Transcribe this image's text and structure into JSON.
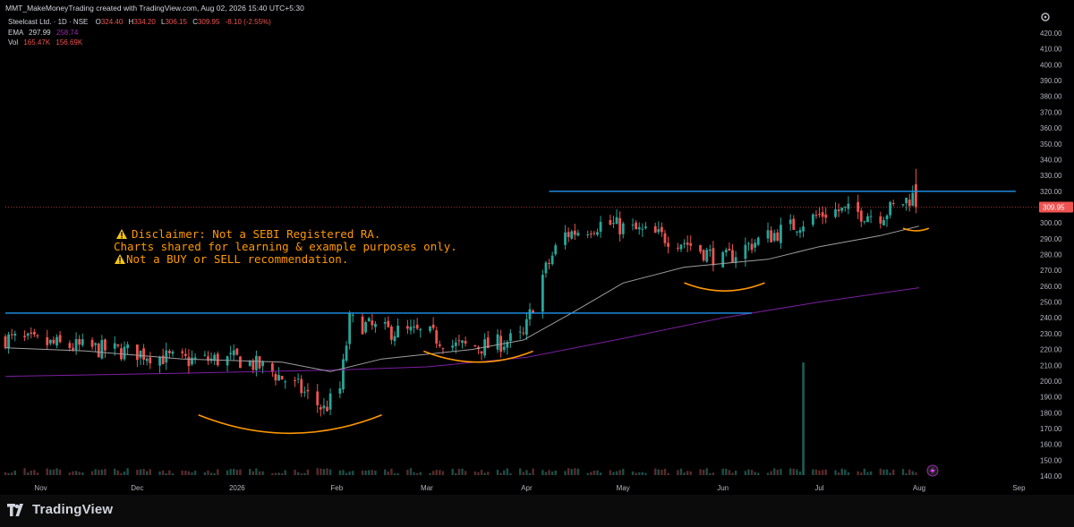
{
  "header": {
    "author_line": "MMT_MakeMoneyTrading created with TradingView.com, Aug 02, 2026 15:40 UTC+5:30",
    "symbol_line": "Steelcast Ltd. · 1D · NSE",
    "ohlc": {
      "o_label": "O",
      "o": "324.40",
      "h_label": "H",
      "h": "334.20",
      "l_label": "L",
      "l": "306.15",
      "c_label": "C",
      "c": "309.95",
      "chg": "-8.10 (-2.55%)"
    },
    "ema_label": "EMA",
    "ema_1": "297.99",
    "ema_2": "258.74",
    "vol_label": "Vol",
    "vol_1": "165.47K",
    "vol_2": "156.69K"
  },
  "disclaimer": {
    "line1": "Disclaimer: Not a SEBI Registered RA.",
    "line2": "Charts shared for learning & example purposes only.",
    "line3": "Not a BUY or SELL recommendation."
  },
  "price_axis": {
    "ticks": [
      "420.00",
      "410.00",
      "400.00",
      "390.00",
      "380.00",
      "370.00",
      "360.00",
      "350.00",
      "340.00",
      "330.00",
      "320.00",
      "310.00",
      "300.00",
      "290.00",
      "280.00",
      "270.00",
      "260.00",
      "250.00",
      "240.00",
      "230.00",
      "220.00",
      "210.00",
      "200.00",
      "190.00",
      "180.00",
      "170.00",
      "160.00",
      "150.00",
      "140.00"
    ],
    "last_price": "309.95"
  },
  "time_axis": {
    "labels": [
      "Nov",
      "Dec",
      "2026",
      "Feb",
      "Mar",
      "Apr",
      "May",
      "Jun",
      "Jul",
      "Aug",
      "Sep"
    ]
  },
  "brand": {
    "name": "TradingView"
  },
  "colors": {
    "up": "#26a69a",
    "down": "#ef5350",
    "ema_short": "#b2b5be",
    "ema_long": "#9c27b0",
    "resistance": "#2196f3",
    "annotation": "#ff9800",
    "last_price": "#ef5350"
  },
  "chart_data": {
    "type": "candlestick",
    "symbol": "Steelcast Ltd.",
    "interval": "1D",
    "exchange": "NSE",
    "ylim": [
      140,
      420
    ],
    "x_range": [
      "2025-10-21",
      "2026-09-07"
    ],
    "resistance_lines": [
      {
        "from": "2025-10-21",
        "to": "2026-06-10",
        "y": 243
      },
      {
        "from": "2026-04-08",
        "to": "2026-08-31",
        "y": 320
      }
    ],
    "arc_annotations": [
      {
        "from": "2025-12-20",
        "to": "2026-02-15",
        "bottom_y": 167
      },
      {
        "from": "2026-02-28",
        "to": "2026-04-03",
        "bottom_y": 212
      },
      {
        "from": "2026-05-20",
        "to": "2026-06-14",
        "bottom_y": 257
      },
      {
        "from": "2026-07-27",
        "to": "2026-08-04",
        "bottom_y": 295
      }
    ],
    "ema_short": {
      "label": "EMA",
      "points": [
        [
          "2025-10-21",
          221
        ],
        [
          "2025-11-15",
          219
        ],
        [
          "2025-12-15",
          214
        ],
        [
          "2026-01-15",
          212
        ],
        [
          "2026-01-30",
          206
        ],
        [
          "2026-02-15",
          214
        ],
        [
          "2026-03-15",
          220
        ],
        [
          "2026-03-31",
          226
        ],
        [
          "2026-04-15",
          243
        ],
        [
          "2026-05-01",
          262
        ],
        [
          "2026-05-20",
          272
        ],
        [
          "2026-06-15",
          277
        ],
        [
          "2026-07-01",
          285
        ],
        [
          "2026-07-20",
          292
        ],
        [
          "2026-08-01",
          298
        ]
      ]
    },
    "ema_long": {
      "label": "EMA",
      "points": [
        [
          "2025-10-21",
          203
        ],
        [
          "2025-12-15",
          205
        ],
        [
          "2026-01-31",
          207
        ],
        [
          "2026-03-01",
          209
        ],
        [
          "2026-04-01",
          215
        ],
        [
          "2026-05-01",
          227
        ],
        [
          "2026-06-01",
          240
        ],
        [
          "2026-07-01",
          250
        ],
        [
          "2026-08-01",
          259
        ]
      ]
    },
    "volume_spike": {
      "date": "2026-06-26",
      "volume": "large"
    },
    "price_path": [
      [
        "2025-10-21",
        227
      ],
      [
        "2025-11-01",
        224
      ],
      [
        "2025-11-15",
        221
      ],
      [
        "2025-12-01",
        218
      ],
      [
        "2025-12-15",
        213
      ],
      [
        "2026-01-01",
        214
      ],
      [
        "2026-01-10",
        208
      ],
      [
        "2026-01-20",
        196
      ],
      [
        "2026-01-28",
        182
      ],
      [
        "2026-02-02",
        195
      ],
      [
        "2026-02-05",
        238
      ],
      [
        "2026-02-15",
        232
      ],
      [
        "2026-03-01",
        230
      ],
      [
        "2026-03-10",
        222
      ],
      [
        "2026-03-20",
        222
      ],
      [
        "2026-03-31",
        228
      ],
      [
        "2026-04-05",
        262
      ],
      [
        "2026-04-12",
        292
      ],
      [
        "2026-04-25",
        300
      ],
      [
        "2026-05-05",
        295
      ],
      [
        "2026-05-20",
        288
      ],
      [
        "2026-06-01",
        276
      ],
      [
        "2026-06-10",
        287
      ],
      [
        "2026-06-25",
        300
      ],
      [
        "2026-07-05",
        308
      ],
      [
        "2026-07-20",
        305
      ],
      [
        "2026-07-31",
        318
      ],
      [
        "2026-08-01",
        309.95
      ]
    ]
  }
}
